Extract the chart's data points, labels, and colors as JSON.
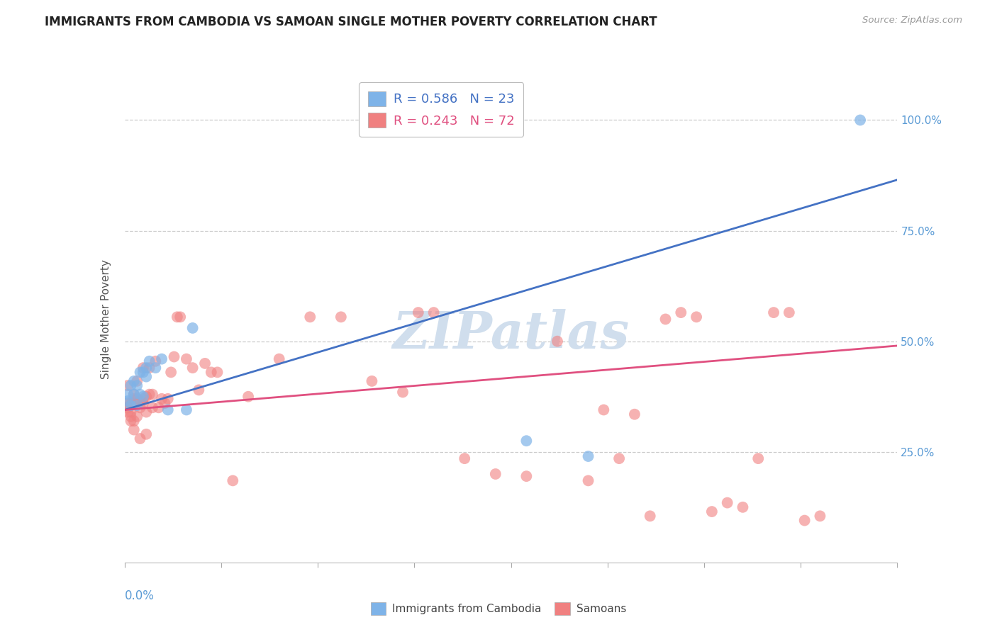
{
  "title": "IMMIGRANTS FROM CAMBODIA VS SAMOAN SINGLE MOTHER POVERTY CORRELATION CHART",
  "source": "Source: ZipAtlas.com",
  "ylabel": "Single Mother Poverty",
  "legend1_r": "R = 0.586",
  "legend1_n": "N = 23",
  "legend2_r": "R = 0.243",
  "legend2_n": "N = 72",
  "legend_label1": "Immigrants from Cambodia",
  "legend_label2": "Samoans",
  "blue_scatter_color": "#7EB3E8",
  "pink_scatter_color": "#F08080",
  "blue_line_color": "#4472C4",
  "pink_line_color": "#E05080",
  "title_color": "#222222",
  "axis_tick_color": "#5B9BD5",
  "gridline_color": "#CCCCCC",
  "watermark_color": "#D0DEED",
  "background_color": "#FFFFFF",
  "blue_line_x0": 0.0,
  "blue_line_y0": 0.345,
  "blue_line_x1": 0.25,
  "blue_line_y1": 0.865,
  "pink_line_x0": 0.0,
  "pink_line_y0": 0.345,
  "pink_line_x1": 0.25,
  "pink_line_y1": 0.49,
  "ylim_min": 0.0,
  "ylim_max": 1.1,
  "xlim_min": 0.0,
  "xlim_max": 0.25,
  "cambodia_x": [
    0.001,
    0.001,
    0.002,
    0.002,
    0.003,
    0.003,
    0.004,
    0.004,
    0.005,
    0.005,
    0.006,
    0.006,
    0.007,
    0.007,
    0.008,
    0.01,
    0.012,
    0.014,
    0.02,
    0.022,
    0.13,
    0.15,
    0.238
  ],
  "cambodia_y": [
    0.365,
    0.38,
    0.355,
    0.4,
    0.38,
    0.41,
    0.355,
    0.4,
    0.38,
    0.43,
    0.375,
    0.43,
    0.44,
    0.42,
    0.455,
    0.44,
    0.46,
    0.345,
    0.345,
    0.53,
    0.275,
    0.24,
    1.0
  ],
  "samoan_x": [
    0.001,
    0.001,
    0.001,
    0.001,
    0.002,
    0.002,
    0.002,
    0.002,
    0.003,
    0.003,
    0.003,
    0.003,
    0.004,
    0.004,
    0.004,
    0.005,
    0.005,
    0.005,
    0.006,
    0.006,
    0.006,
    0.007,
    0.007,
    0.007,
    0.008,
    0.008,
    0.009,
    0.009,
    0.01,
    0.011,
    0.012,
    0.013,
    0.014,
    0.015,
    0.016,
    0.017,
    0.018,
    0.02,
    0.022,
    0.024,
    0.026,
    0.028,
    0.03,
    0.035,
    0.04,
    0.05,
    0.06,
    0.07,
    0.08,
    0.09,
    0.095,
    0.1,
    0.11,
    0.12,
    0.13,
    0.14,
    0.15,
    0.155,
    0.16,
    0.165,
    0.17,
    0.175,
    0.18,
    0.185,
    0.19,
    0.195,
    0.2,
    0.205,
    0.21,
    0.215,
    0.22,
    0.225
  ],
  "samoan_y": [
    0.36,
    0.4,
    0.34,
    0.35,
    0.33,
    0.32,
    0.36,
    0.34,
    0.32,
    0.3,
    0.37,
    0.38,
    0.33,
    0.37,
    0.41,
    0.365,
    0.35,
    0.28,
    0.37,
    0.36,
    0.44,
    0.375,
    0.34,
    0.29,
    0.38,
    0.44,
    0.38,
    0.35,
    0.455,
    0.35,
    0.37,
    0.36,
    0.37,
    0.43,
    0.465,
    0.555,
    0.555,
    0.46,
    0.44,
    0.39,
    0.45,
    0.43,
    0.43,
    0.185,
    0.375,
    0.46,
    0.555,
    0.555,
    0.41,
    0.385,
    0.565,
    0.565,
    0.235,
    0.2,
    0.195,
    0.5,
    0.185,
    0.345,
    0.235,
    0.335,
    0.105,
    0.55,
    0.565,
    0.555,
    0.115,
    0.135,
    0.125,
    0.235,
    0.565,
    0.565,
    0.095,
    0.105
  ]
}
